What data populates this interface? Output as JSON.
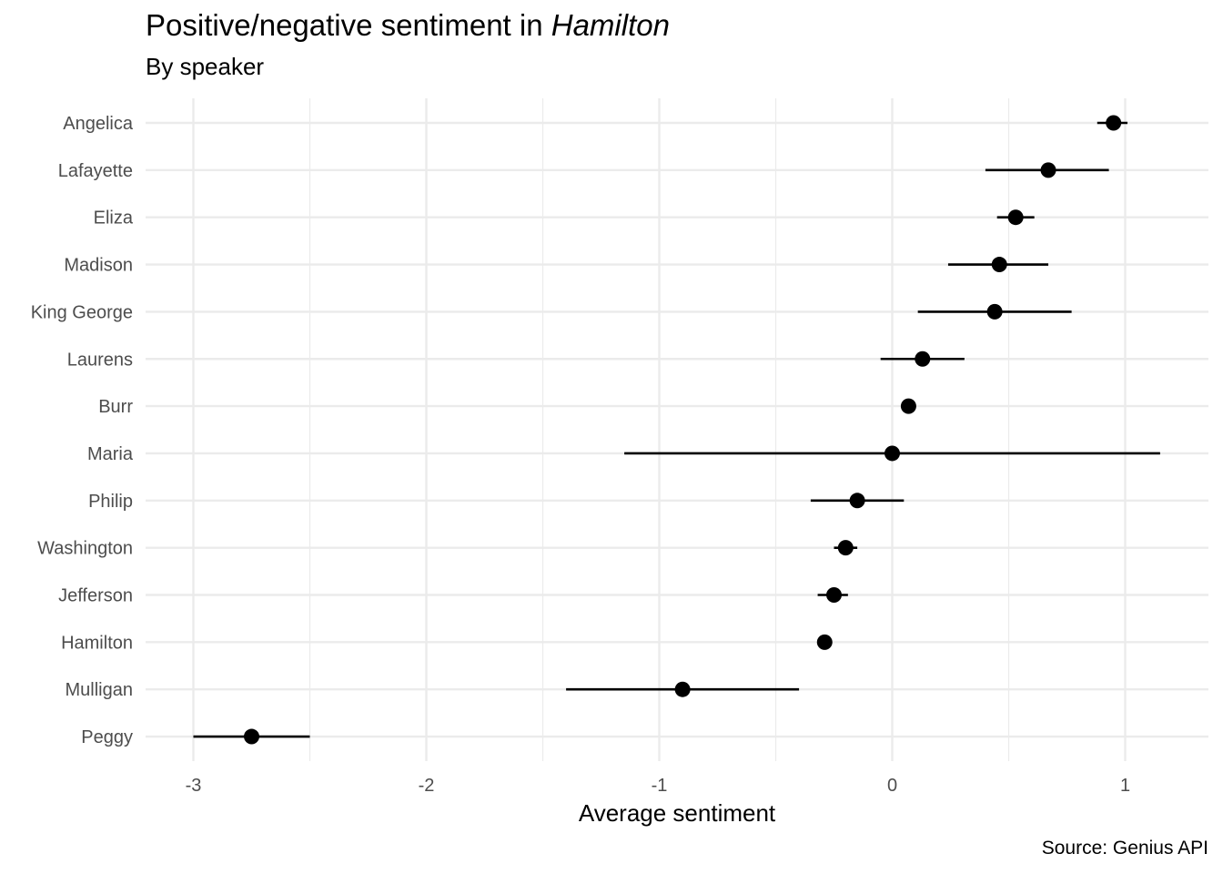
{
  "chart_data": {
    "type": "scatter",
    "title_plain": "Positive/negative sentiment in ",
    "title_italic": "Hamilton",
    "subtitle": "By speaker",
    "xlabel": "Average sentiment",
    "ylabel": "",
    "caption": "Source: Genius API",
    "xlim": [
      -3.2,
      1.35
    ],
    "x_ticks": [
      -3,
      -2,
      -1,
      0,
      1
    ],
    "x_tick_labels": [
      "-3",
      "-2",
      "-1",
      "0",
      "1"
    ],
    "grid": true,
    "legend": "none",
    "colors": {
      "point": "#000000",
      "grid_major": "#ebebeb",
      "tick_text": "#4d4d4d"
    },
    "categories": [
      "Angelica",
      "Lafayette",
      "Eliza",
      "Madison",
      "King George",
      "Laurens",
      "Burr",
      "Maria",
      "Philip",
      "Washington",
      "Jefferson",
      "Hamilton",
      "Mulligan",
      "Peggy"
    ],
    "series": [
      {
        "values": [
          0.95,
          0.67,
          0.53,
          0.46,
          0.44,
          0.13,
          0.07,
          0.0,
          -0.15,
          -0.2,
          -0.25,
          -0.29,
          -0.9,
          -2.75
        ],
        "lower": [
          0.88,
          0.4,
          0.45,
          0.24,
          0.11,
          -0.05,
          0.07,
          -1.15,
          -0.35,
          -0.25,
          -0.32,
          -0.29,
          -1.4,
          -3.0
        ],
        "upper": [
          1.01,
          0.93,
          0.61,
          0.67,
          0.77,
          0.31,
          0.07,
          1.15,
          0.05,
          -0.15,
          -0.19,
          -0.29,
          -0.4,
          -2.5
        ]
      }
    ]
  }
}
